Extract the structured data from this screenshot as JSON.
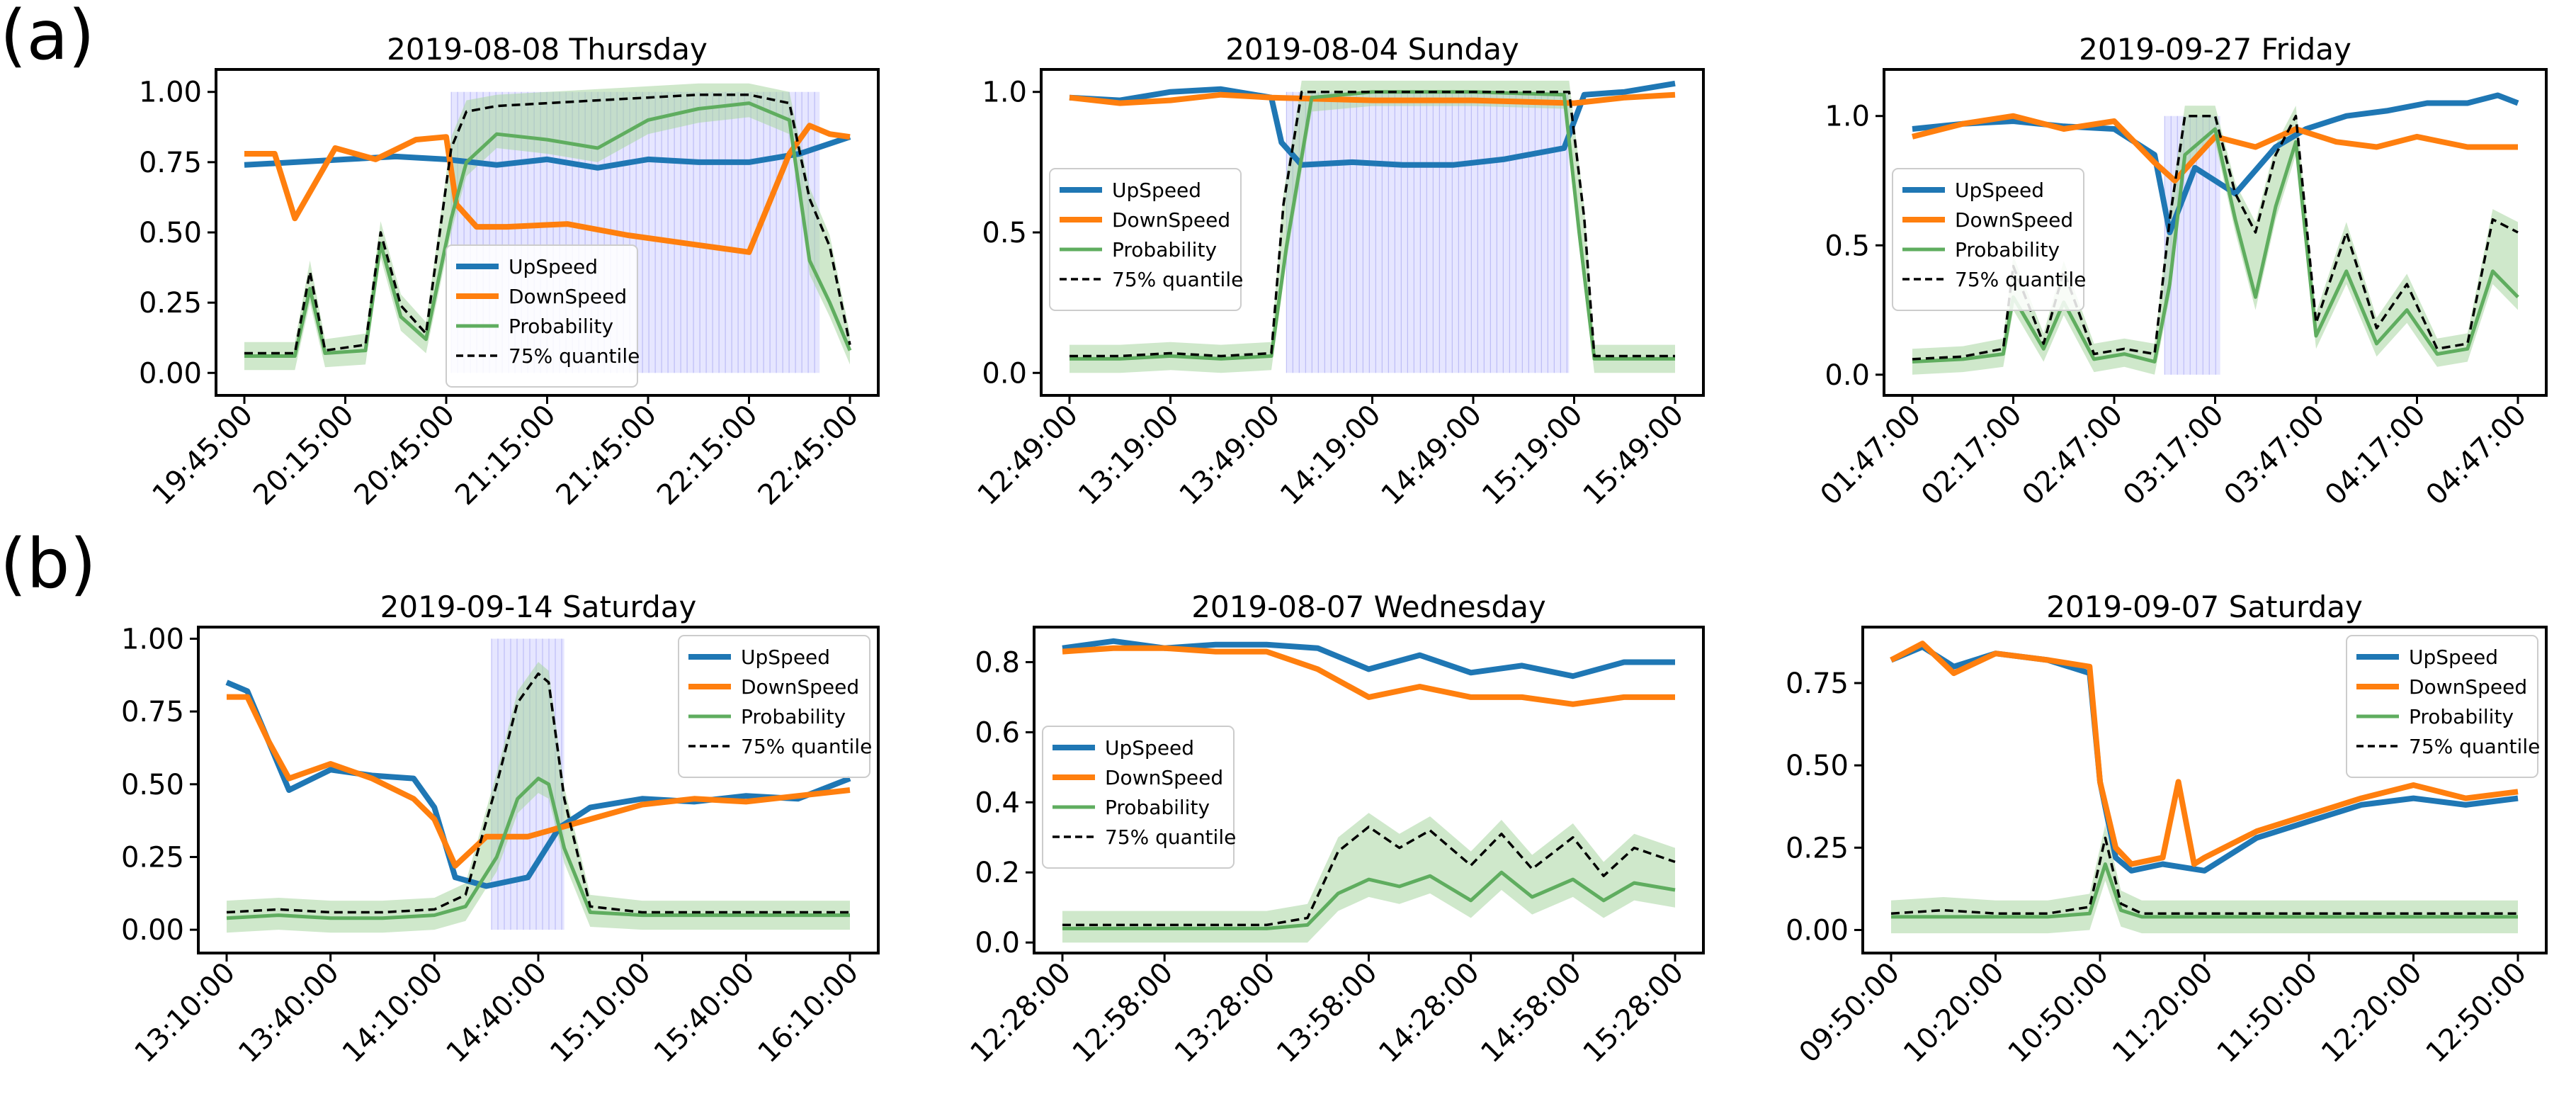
{
  "row_labels": [
    "(a)",
    "(b)"
  ],
  "colors": {
    "upspeed": "#1f77b4",
    "downspeed": "#ff7f0e",
    "probability": "#5fad5f",
    "band": "#a8d5a0",
    "quantile": "#000000",
    "shade": "#c8c8ff"
  },
  "chart_data": [
    {
      "type": "line",
      "title": "2019-08-08 Thursday",
      "ylim": [
        -0.08,
        1.08
      ],
      "yticks": [
        "0.00",
        "0.25",
        "0.50",
        "0.75",
        "1.00"
      ],
      "xticks": [
        "19:45:00",
        "20:15:00",
        "20:45:00",
        "21:15:00",
        "21:45:00",
        "22:15:00",
        "22:45:00"
      ],
      "legend": "lower-center",
      "shaded_x": [
        2.05,
        5.7
      ],
      "series": [
        {
          "name": "UpSpeed",
          "x": [
            0,
            0.5,
            1,
            1.5,
            2,
            2.5,
            3,
            3.5,
            4,
            4.5,
            5,
            5.5,
            6
          ],
          "values": [
            0.74,
            0.75,
            0.76,
            0.77,
            0.76,
            0.74,
            0.76,
            0.73,
            0.76,
            0.75,
            0.75,
            0.78,
            0.84
          ]
        },
        {
          "name": "DownSpeed",
          "x": [
            0,
            0.3,
            0.5,
            0.9,
            1.3,
            1.7,
            2.0,
            2.1,
            2.3,
            2.6,
            3.2,
            3.8,
            4.4,
            5.0,
            5.4,
            5.6,
            5.8,
            6.0
          ],
          "values": [
            0.78,
            0.78,
            0.55,
            0.8,
            0.76,
            0.83,
            0.84,
            0.6,
            0.52,
            0.52,
            0.53,
            0.49,
            0.46,
            0.43,
            0.78,
            0.88,
            0.85,
            0.84
          ]
        },
        {
          "name": "Probability",
          "x": [
            0,
            0.5,
            0.65,
            0.8,
            1.2,
            1.35,
            1.55,
            1.8,
            2.05,
            2.2,
            2.5,
            3.0,
            3.5,
            4.0,
            4.5,
            5.0,
            5.4,
            5.6,
            5.8,
            6.0
          ],
          "values": [
            0.06,
            0.06,
            0.3,
            0.07,
            0.08,
            0.46,
            0.2,
            0.12,
            0.55,
            0.75,
            0.85,
            0.83,
            0.8,
            0.9,
            0.94,
            0.96,
            0.9,
            0.4,
            0.25,
            0.08
          ]
        },
        {
          "name": "75% quantile",
          "x": [
            0,
            0.5,
            0.65,
            0.8,
            1.2,
            1.35,
            1.55,
            1.8,
            2.05,
            2.2,
            2.5,
            3.0,
            3.5,
            4.0,
            4.5,
            5.0,
            5.4,
            5.6,
            5.8,
            6.0
          ],
          "values": [
            0.07,
            0.07,
            0.36,
            0.08,
            0.1,
            0.5,
            0.24,
            0.14,
            0.8,
            0.93,
            0.95,
            0.96,
            0.97,
            0.98,
            0.99,
            0.99,
            0.96,
            0.62,
            0.45,
            0.1
          ]
        }
      ]
    },
    {
      "type": "line",
      "title": "2019-08-04 Sunday",
      "ylim": [
        -0.08,
        1.08
      ],
      "yticks": [
        "0.0",
        "0.5",
        "1.0"
      ],
      "xticks": [
        "12:49:00",
        "13:19:00",
        "13:49:00",
        "14:19:00",
        "14:49:00",
        "15:19:00",
        "15:49:00"
      ],
      "legend": "center-left",
      "shaded_x": [
        2.15,
        4.95
      ],
      "series": [
        {
          "name": "UpSpeed",
          "x": [
            0,
            0.5,
            1.0,
            1.5,
            2.0,
            2.1,
            2.3,
            2.8,
            3.3,
            3.8,
            4.3,
            4.9,
            5.1,
            5.5,
            6.0
          ],
          "values": [
            0.98,
            0.97,
            1.0,
            1.01,
            0.98,
            0.82,
            0.74,
            0.75,
            0.74,
            0.74,
            0.76,
            0.8,
            0.99,
            1.0,
            1.03
          ]
        },
        {
          "name": "DownSpeed",
          "x": [
            0,
            0.5,
            1.0,
            1.5,
            2.0,
            3.0,
            4.0,
            5.0,
            5.5,
            6.0
          ],
          "values": [
            0.98,
            0.96,
            0.97,
            0.99,
            0.98,
            0.97,
            0.97,
            0.96,
            0.98,
            0.99
          ]
        },
        {
          "name": "Probability",
          "x": [
            0,
            0.5,
            1.0,
            1.5,
            2.0,
            2.15,
            2.4,
            3.0,
            4.0,
            4.9,
            5.05,
            5.2,
            5.5,
            6.0
          ],
          "values": [
            0.05,
            0.05,
            0.06,
            0.05,
            0.06,
            0.45,
            0.98,
            1.0,
            1.0,
            0.99,
            0.5,
            0.05,
            0.05,
            0.05
          ]
        },
        {
          "name": "75% quantile",
          "x": [
            0,
            0.5,
            1.0,
            1.5,
            2.0,
            2.12,
            2.3,
            3.0,
            4.0,
            4.95,
            5.1,
            5.2,
            5.5,
            6.0
          ],
          "values": [
            0.06,
            0.06,
            0.07,
            0.06,
            0.07,
            0.6,
            1.0,
            1.0,
            1.0,
            1.0,
            0.55,
            0.06,
            0.06,
            0.06
          ]
        }
      ]
    },
    {
      "type": "line",
      "title": "2019-09-27 Friday",
      "ylim": [
        -0.08,
        1.18
      ],
      "yticks": [
        "0.0",
        "0.5",
        "1.0"
      ],
      "xticks": [
        "01:47:00",
        "02:17:00",
        "02:47:00",
        "03:17:00",
        "03:47:00",
        "04:17:00",
        "04:47:00"
      ],
      "legend": "center-left",
      "shaded_x": [
        2.5,
        3.05
      ],
      "series": [
        {
          "name": "UpSpeed",
          "x": [
            0,
            0.5,
            1.0,
            1.5,
            2.0,
            2.4,
            2.55,
            2.8,
            3.2,
            3.6,
            3.9,
            4.3,
            4.7,
            5.1,
            5.5,
            5.8,
            6.0
          ],
          "values": [
            0.95,
            0.97,
            0.98,
            0.96,
            0.95,
            0.85,
            0.55,
            0.8,
            0.7,
            0.88,
            0.95,
            1.0,
            1.02,
            1.05,
            1.05,
            1.08,
            1.05
          ]
        },
        {
          "name": "DownSpeed",
          "x": [
            0,
            0.5,
            1.0,
            1.5,
            2.0,
            2.4,
            2.6,
            3.0,
            3.4,
            3.8,
            4.2,
            4.6,
            5.0,
            5.5,
            6.0
          ],
          "values": [
            0.92,
            0.97,
            1.0,
            0.95,
            0.98,
            0.82,
            0.75,
            0.92,
            0.88,
            0.95,
            0.9,
            0.88,
            0.92,
            0.88,
            0.88
          ]
        },
        {
          "name": "Probability",
          "x": [
            0,
            0.5,
            0.9,
            1.0,
            1.3,
            1.5,
            1.8,
            2.1,
            2.4,
            2.55,
            2.7,
            3.0,
            3.2,
            3.4,
            3.6,
            3.8,
            4.0,
            4.3,
            4.6,
            4.9,
            5.2,
            5.5,
            5.75,
            6.0
          ],
          "values": [
            0.05,
            0.06,
            0.08,
            0.3,
            0.1,
            0.28,
            0.06,
            0.08,
            0.05,
            0.35,
            0.85,
            0.95,
            0.6,
            0.3,
            0.65,
            0.9,
            0.15,
            0.4,
            0.12,
            0.25,
            0.08,
            0.1,
            0.4,
            0.3
          ]
        },
        {
          "name": "75% quantile",
          "x": [
            0,
            0.5,
            0.9,
            1.0,
            1.3,
            1.5,
            1.8,
            2.1,
            2.4,
            2.55,
            2.7,
            3.0,
            3.2,
            3.4,
            3.6,
            3.8,
            4.0,
            4.3,
            4.6,
            4.9,
            5.2,
            5.5,
            5.75,
            6.0
          ],
          "values": [
            0.06,
            0.07,
            0.1,
            0.42,
            0.12,
            0.4,
            0.08,
            0.1,
            0.08,
            0.6,
            1.0,
            1.0,
            0.7,
            0.55,
            0.85,
            1.0,
            0.2,
            0.55,
            0.18,
            0.35,
            0.1,
            0.12,
            0.6,
            0.55
          ]
        }
      ]
    },
    {
      "type": "line",
      "title": "2019-09-14 Saturday",
      "ylim": [
        -0.08,
        1.04
      ],
      "yticks": [
        "0.00",
        "0.25",
        "0.50",
        "0.75",
        "1.00"
      ],
      "xticks": [
        "13:10:00",
        "13:40:00",
        "14:10:00",
        "14:40:00",
        "15:10:00",
        "15:40:00",
        "16:10:00"
      ],
      "legend": "top-right",
      "shaded_x": [
        2.55,
        3.25
      ],
      "series": [
        {
          "name": "UpSpeed",
          "x": [
            0,
            0.2,
            0.4,
            0.6,
            1.0,
            1.4,
            1.8,
            2.0,
            2.2,
            2.5,
            2.9,
            3.2,
            3.5,
            4.0,
            4.5,
            5.0,
            5.5,
            6.0
          ],
          "values": [
            0.85,
            0.82,
            0.65,
            0.48,
            0.55,
            0.53,
            0.52,
            0.42,
            0.18,
            0.15,
            0.18,
            0.35,
            0.42,
            0.45,
            0.44,
            0.46,
            0.45,
            0.52
          ]
        },
        {
          "name": "DownSpeed",
          "x": [
            0,
            0.2,
            0.4,
            0.6,
            1.0,
            1.4,
            1.8,
            2.0,
            2.2,
            2.5,
            2.9,
            3.2,
            3.5,
            4.0,
            4.5,
            5.0,
            5.5,
            6.0
          ],
          "values": [
            0.8,
            0.8,
            0.65,
            0.52,
            0.57,
            0.52,
            0.45,
            0.38,
            0.22,
            0.32,
            0.32,
            0.35,
            0.38,
            0.43,
            0.45,
            0.44,
            0.46,
            0.48
          ]
        },
        {
          "name": "Probability",
          "x": [
            0,
            0.5,
            1.0,
            1.5,
            2.0,
            2.3,
            2.6,
            2.8,
            3.0,
            3.1,
            3.25,
            3.5,
            4.0,
            5.0,
            6.0
          ],
          "values": [
            0.04,
            0.05,
            0.04,
            0.04,
            0.05,
            0.08,
            0.25,
            0.45,
            0.52,
            0.5,
            0.28,
            0.06,
            0.05,
            0.05,
            0.05
          ]
        },
        {
          "name": "75% quantile",
          "x": [
            0,
            0.5,
            1.0,
            1.5,
            2.0,
            2.3,
            2.6,
            2.8,
            3.0,
            3.1,
            3.25,
            3.5,
            4.0,
            5.0,
            6.0
          ],
          "values": [
            0.06,
            0.07,
            0.06,
            0.06,
            0.07,
            0.12,
            0.5,
            0.78,
            0.88,
            0.85,
            0.45,
            0.08,
            0.06,
            0.06,
            0.06
          ]
        }
      ]
    },
    {
      "type": "line",
      "title": "2019-08-07 Wednesday",
      "ylim": [
        -0.03,
        0.9
      ],
      "yticks": [
        "0.0",
        "0.2",
        "0.4",
        "0.6",
        "0.8"
      ],
      "xticks": [
        "12:28:00",
        "12:58:00",
        "13:28:00",
        "13:58:00",
        "14:28:00",
        "14:58:00",
        "15:28:00"
      ],
      "legend": "center-left",
      "shaded_x": [],
      "series": [
        {
          "name": "UpSpeed",
          "x": [
            0,
            0.5,
            1.0,
            1.5,
            2.0,
            2.5,
            3.0,
            3.5,
            4.0,
            4.5,
            5.0,
            5.5,
            6.0
          ],
          "values": [
            0.84,
            0.86,
            0.84,
            0.85,
            0.85,
            0.84,
            0.78,
            0.82,
            0.77,
            0.79,
            0.76,
            0.8,
            0.8
          ]
        },
        {
          "name": "DownSpeed",
          "x": [
            0,
            0.5,
            1.0,
            1.5,
            2.0,
            2.5,
            3.0,
            3.5,
            4.0,
            4.5,
            5.0,
            5.5,
            6.0
          ],
          "values": [
            0.83,
            0.84,
            0.84,
            0.83,
            0.83,
            0.78,
            0.7,
            0.73,
            0.7,
            0.7,
            0.68,
            0.7,
            0.7
          ]
        },
        {
          "name": "Probability",
          "x": [
            0,
            0.5,
            1.0,
            1.5,
            2.0,
            2.4,
            2.7,
            3.0,
            3.3,
            3.6,
            4.0,
            4.3,
            4.6,
            5.0,
            5.3,
            5.6,
            6.0
          ],
          "values": [
            0.04,
            0.04,
            0.04,
            0.04,
            0.04,
            0.05,
            0.14,
            0.18,
            0.16,
            0.19,
            0.12,
            0.2,
            0.13,
            0.18,
            0.12,
            0.17,
            0.15
          ]
        },
        {
          "name": "75% quantile",
          "x": [
            0,
            0.5,
            1.0,
            1.5,
            2.0,
            2.4,
            2.7,
            3.0,
            3.3,
            3.6,
            4.0,
            4.3,
            4.6,
            5.0,
            5.3,
            5.6,
            6.0
          ],
          "values": [
            0.05,
            0.05,
            0.05,
            0.05,
            0.05,
            0.07,
            0.26,
            0.33,
            0.27,
            0.32,
            0.22,
            0.31,
            0.21,
            0.3,
            0.19,
            0.27,
            0.23
          ]
        }
      ]
    },
    {
      "type": "line",
      "title": "2019-09-07 Saturday",
      "ylim": [
        -0.07,
        0.92
      ],
      "yticks": [
        "0.00",
        "0.25",
        "0.50",
        "0.75"
      ],
      "xticks": [
        "09:50:00",
        "10:20:00",
        "10:50:00",
        "11:20:00",
        "11:50:00",
        "12:20:00",
        "12:50:00"
      ],
      "legend": "top-right",
      "shaded_x": [],
      "series": [
        {
          "name": "UpSpeed",
          "x": [
            0,
            0.3,
            0.6,
            1.0,
            1.5,
            1.9,
            2.0,
            2.15,
            2.3,
            2.6,
            3.0,
            3.5,
            4.0,
            4.5,
            5.0,
            5.5,
            6.0
          ],
          "values": [
            0.82,
            0.86,
            0.8,
            0.84,
            0.82,
            0.78,
            0.45,
            0.22,
            0.18,
            0.2,
            0.18,
            0.28,
            0.33,
            0.38,
            0.4,
            0.38,
            0.4
          ]
        },
        {
          "name": "DownSpeed",
          "x": [
            0,
            0.3,
            0.6,
            1.0,
            1.5,
            1.9,
            2.0,
            2.15,
            2.3,
            2.6,
            2.75,
            2.9,
            3.0,
            3.5,
            4.0,
            4.5,
            5.0,
            5.5,
            6.0
          ],
          "values": [
            0.82,
            0.87,
            0.78,
            0.84,
            0.82,
            0.8,
            0.45,
            0.25,
            0.2,
            0.22,
            0.45,
            0.2,
            0.22,
            0.3,
            0.35,
            0.4,
            0.44,
            0.4,
            0.42
          ]
        },
        {
          "name": "Probability",
          "x": [
            0,
            0.5,
            1.0,
            1.5,
            1.9,
            2.05,
            2.2,
            2.4,
            3.0,
            4.0,
            5.0,
            6.0
          ],
          "values": [
            0.04,
            0.04,
            0.04,
            0.04,
            0.05,
            0.2,
            0.06,
            0.04,
            0.04,
            0.04,
            0.04,
            0.04
          ]
        },
        {
          "name": "75% quantile",
          "x": [
            0,
            0.5,
            1.0,
            1.5,
            1.9,
            2.05,
            2.2,
            2.4,
            3.0,
            4.0,
            5.0,
            6.0
          ],
          "values": [
            0.05,
            0.06,
            0.05,
            0.05,
            0.07,
            0.28,
            0.08,
            0.05,
            0.05,
            0.05,
            0.05,
            0.05
          ]
        }
      ]
    }
  ]
}
